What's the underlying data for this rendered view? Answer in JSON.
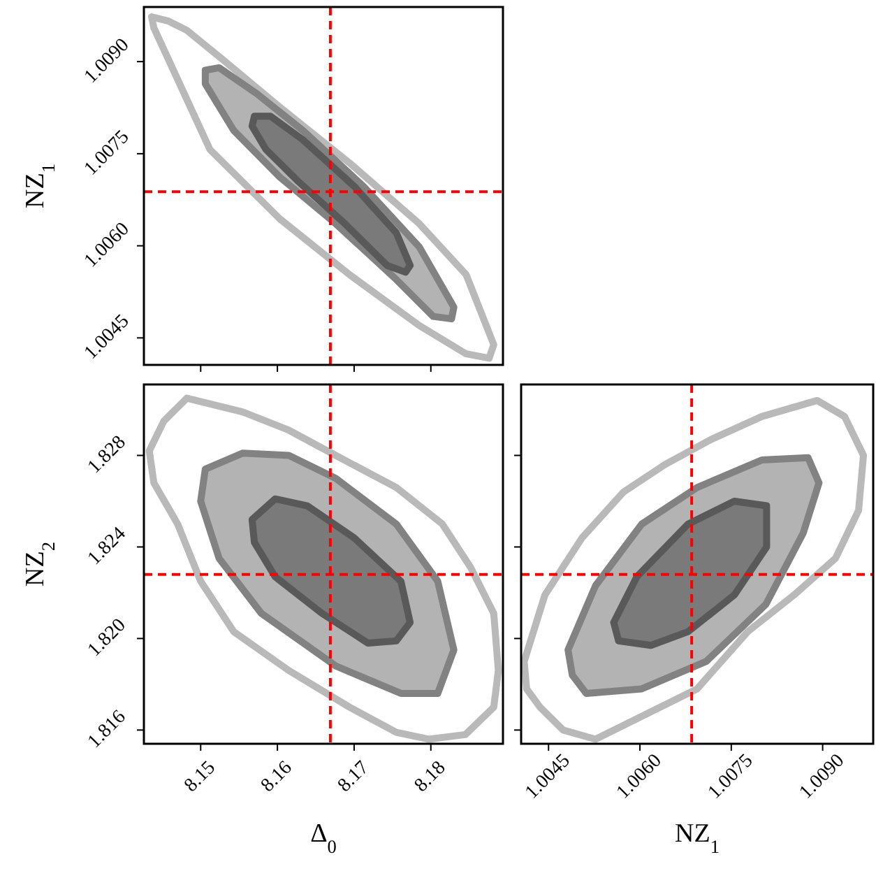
{
  "chart_data": [
    {
      "type": "area",
      "ylabel": "NZ$_{1}$",
      "xlim": [
        8.1426,
        8.1894
      ],
      "ylim": [
        1.00406,
        1.00989
      ],
      "xticks": [
        8.15,
        8.16,
        8.17,
        8.18
      ],
      "yticks": [
        1.0045,
        {
          "value": 1.006,
          "label": "1.0060"
        },
        1.0075,
        {
          "value": 1.009,
          "label": "1.0090"
        }
      ],
      "tick_labels": "y",
      "grid": false,
      "series": [
        {
          "type": "area",
          "color": "#ffffff",
          "x": [
            8.1436,
            8.1458,
            8.1482,
            8.153,
            8.1603,
            8.1694,
            8.1785,
            8.1846,
            8.1882,
            8.1876,
            8.1846,
            8.1785,
            8.1694,
            8.1603,
            8.1512,
            8.147,
            8.1439,
            8.1436
          ],
          "values": [
            1.00973,
            1.00966,
            1.00951,
            1.00902,
            1.00826,
            1.00735,
            1.00636,
            1.00553,
            1.00439,
            1.00417,
            1.00424,
            1.0047,
            1.00553,
            1.00644,
            1.00757,
            1.00871,
            1.00955,
            1.00973
          ]
        },
        {
          "type": "area",
          "color": "#b3b3b3",
          "x": [
            8.1506,
            8.1524,
            8.1573,
            8.1633,
            8.1712,
            8.1785,
            8.183,
            8.1827,
            8.1803,
            8.1755,
            8.1676,
            8.1603,
            8.1543,
            8.1506
          ],
          "values": [
            1.00886,
            1.0089,
            1.00848,
            1.00788,
            1.00697,
            1.00598,
            1.005,
            1.00481,
            1.00485,
            1.00545,
            1.00636,
            1.00712,
            1.00788,
            1.00864
          ]
        },
        {
          "type": "area",
          "color": "#7a7a7a",
          "x": [
            8.157,
            8.1591,
            8.1633,
            8.17,
            8.1755,
            8.1773,
            8.1767,
            8.1743,
            8.1688,
            8.1627,
            8.1585,
            8.1567
          ],
          "values": [
            1.00811,
            1.00811,
            1.00773,
            1.00697,
            1.00621,
            1.00568,
            1.00557,
            1.00568,
            1.00636,
            1.00705,
            1.00757,
            1.00795
          ]
        }
      ],
      "ref_lines": [
        {
          "axis": "x",
          "value": 8.1669,
          "color": "#ff0000",
          "line_style": "dashed"
        },
        {
          "axis": "y",
          "value": 1.00688,
          "color": "#ff0000",
          "line_style": "dashed"
        }
      ]
    },
    {
      "type": "area",
      "xlabel": "Δ$_{0}$",
      "ylabel": "NZ$_{2}$",
      "xlim": [
        8.1426,
        8.1894
      ],
      "ylim": [
        1.8154,
        1.8311
      ],
      "xticks": [
        8.15,
        8.16,
        8.17,
        8.18
      ],
      "yticks": [
        1.816,
        {
          "value": 1.82,
          "label": "1.820"
        },
        1.824,
        1.828
      ],
      "grid": false,
      "series": [
        {
          "type": "area",
          "color": "#ffffff",
          "x": [
            8.1482,
            8.1555,
            8.1615,
            8.1676,
            8.1755,
            8.1815,
            8.1852,
            8.1882,
            8.1888,
            8.1882,
            8.1845,
            8.1797,
            8.1755,
            8.1694,
            8.1615,
            8.1543,
            8.15,
            8.147,
            8.1439,
            8.1433,
            8.1452,
            8.1482
          ],
          "values": [
            1.8305,
            1.8299,
            1.8291,
            1.828,
            1.8266,
            1.825,
            1.8231,
            1.8211,
            1.8186,
            1.817,
            1.8158,
            1.8156,
            1.8159,
            1.817,
            1.8186,
            1.8203,
            1.8225,
            1.825,
            1.8268,
            1.8282,
            1.8295,
            1.8305
          ]
        },
        {
          "type": "area",
          "color": "#b3b3b3",
          "x": [
            8.1506,
            8.1555,
            8.1615,
            8.1676,
            8.1755,
            8.1809,
            8.183,
            8.1809,
            8.1761,
            8.1676,
            8.1579,
            8.1524,
            8.15
          ],
          "values": [
            1.8274,
            1.8281,
            1.828,
            1.827,
            1.825,
            1.8225,
            1.8195,
            1.8176,
            1.8176,
            1.8188,
            1.8211,
            1.8235,
            1.826
          ]
        },
        {
          "type": "area",
          "color": "#7a7a7a",
          "x": [
            8.1567,
            8.1597,
            8.1639,
            8.17,
            8.1761,
            8.1773,
            8.1755,
            8.1718,
            8.1658,
            8.1597,
            8.157
          ],
          "values": [
            1.8252,
            1.8261,
            1.8258,
            1.8244,
            1.8225,
            1.8207,
            1.8199,
            1.8198,
            1.8211,
            1.8227,
            1.8242
          ]
        }
      ],
      "ref_lines": [
        {
          "axis": "x",
          "value": 8.1669,
          "color": "#ff0000",
          "line_style": "dashed"
        },
        {
          "axis": "y",
          "value": 1.8228,
          "color": "#ff0000",
          "line_style": "dashed"
        }
      ]
    },
    {
      "type": "area",
      "xlabel": "NZ$_{1}$",
      "xlim": [
        1.00405,
        1.00983
      ],
      "ylim": [
        1.8154,
        1.8311
      ],
      "xticks": [
        1.0045,
        {
          "value": 1.006,
          "label": "1.0060"
        },
        1.0075,
        {
          "value": 1.009,
          "label": "1.0090"
        }
      ],
      "yticks": [
        1.816,
        1.82,
        1.824,
        1.828
      ],
      "tick_labels": "x",
      "grid": false,
      "series": [
        {
          "type": "area",
          "color": "#ffffff",
          "x": [
            1.0041,
            1.00444,
            1.00505,
            1.00573,
            1.00641,
            1.00717,
            1.008,
            1.00891,
            1.00936,
            1.00967,
            1.00959,
            1.00921,
            1.00853,
            1.00777,
            1.00694,
            1.00603,
            1.00527,
            1.00474,
            1.00436,
            1.00414,
            1.0041
          ],
          "values": [
            1.819,
            1.8219,
            1.8244,
            1.8264,
            1.8276,
            1.8287,
            1.8297,
            1.8304,
            1.8297,
            1.828,
            1.8256,
            1.8235,
            1.8219,
            1.8203,
            1.8178,
            1.8166,
            1.8156,
            1.816,
            1.817,
            1.8178,
            1.819
          ]
        },
        {
          "type": "area",
          "color": "#b3b3b3",
          "x": [
            1.00482,
            1.00527,
            1.00603,
            1.00694,
            1.008,
            1.00876,
            1.00894,
            1.00868,
            1.00807,
            1.00709,
            1.00603,
            1.00512,
            1.00489
          ],
          "values": [
            1.8195,
            1.8223,
            1.825,
            1.8266,
            1.8278,
            1.8279,
            1.8268,
            1.8246,
            1.8215,
            1.819,
            1.8178,
            1.8176,
            1.8184
          ]
        },
        {
          "type": "area",
          "color": "#7a7a7a",
          "x": [
            1.00557,
            1.00595,
            1.00679,
            1.00755,
            1.00808,
            1.00808,
            1.00755,
            1.00679,
            1.00618,
            1.00565
          ],
          "values": [
            1.8207,
            1.8227,
            1.825,
            1.826,
            1.8258,
            1.824,
            1.8219,
            1.8203,
            1.8197,
            1.8199
          ]
        }
      ],
      "ref_lines": [
        {
          "axis": "x",
          "value": 1.00685,
          "color": "#ff0000",
          "line_style": "dashed"
        },
        {
          "axis": "y",
          "value": 1.8228,
          "color": "#ff0000",
          "line_style": "dashed"
        }
      ]
    }
  ]
}
